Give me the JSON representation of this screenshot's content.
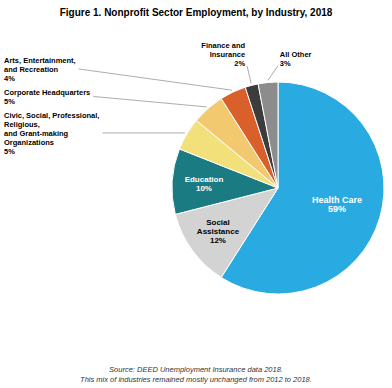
{
  "chart_data": {
    "type": "pie",
    "title": "Figure 1. Nonprofit Sector Employment, by Industry, 2018",
    "categories": [
      "Health Care",
      "Social\nAssistance",
      "Education",
      "Civic, Social, Professional,\nReligious,\nand Grant-making\nOrganizations",
      "Corporate Headquarters",
      "Arts, Entertainment,\nand Recreation",
      "Finance and\nInsurance",
      "All Other"
    ],
    "values": [
      59,
      12,
      10,
      5,
      5,
      4,
      2,
      3
    ],
    "value_labels": [
      "59%",
      "12%",
      "10%",
      "5%",
      "5%",
      "4%",
      "2%",
      "3%"
    ],
    "colors": [
      "#29aae1",
      "#d3d3d3",
      "#1b7b82",
      "#f2e07a",
      "#f2c96e",
      "#d95f2b",
      "#3c3c3c",
      "#8c8c8c"
    ],
    "data_labels": true,
    "annotations": [
      "Source: DEED Unemployment Insurance data 2018.",
      "This mix of industries remained mostly unchanged from 2012 to 2018."
    ]
  }
}
